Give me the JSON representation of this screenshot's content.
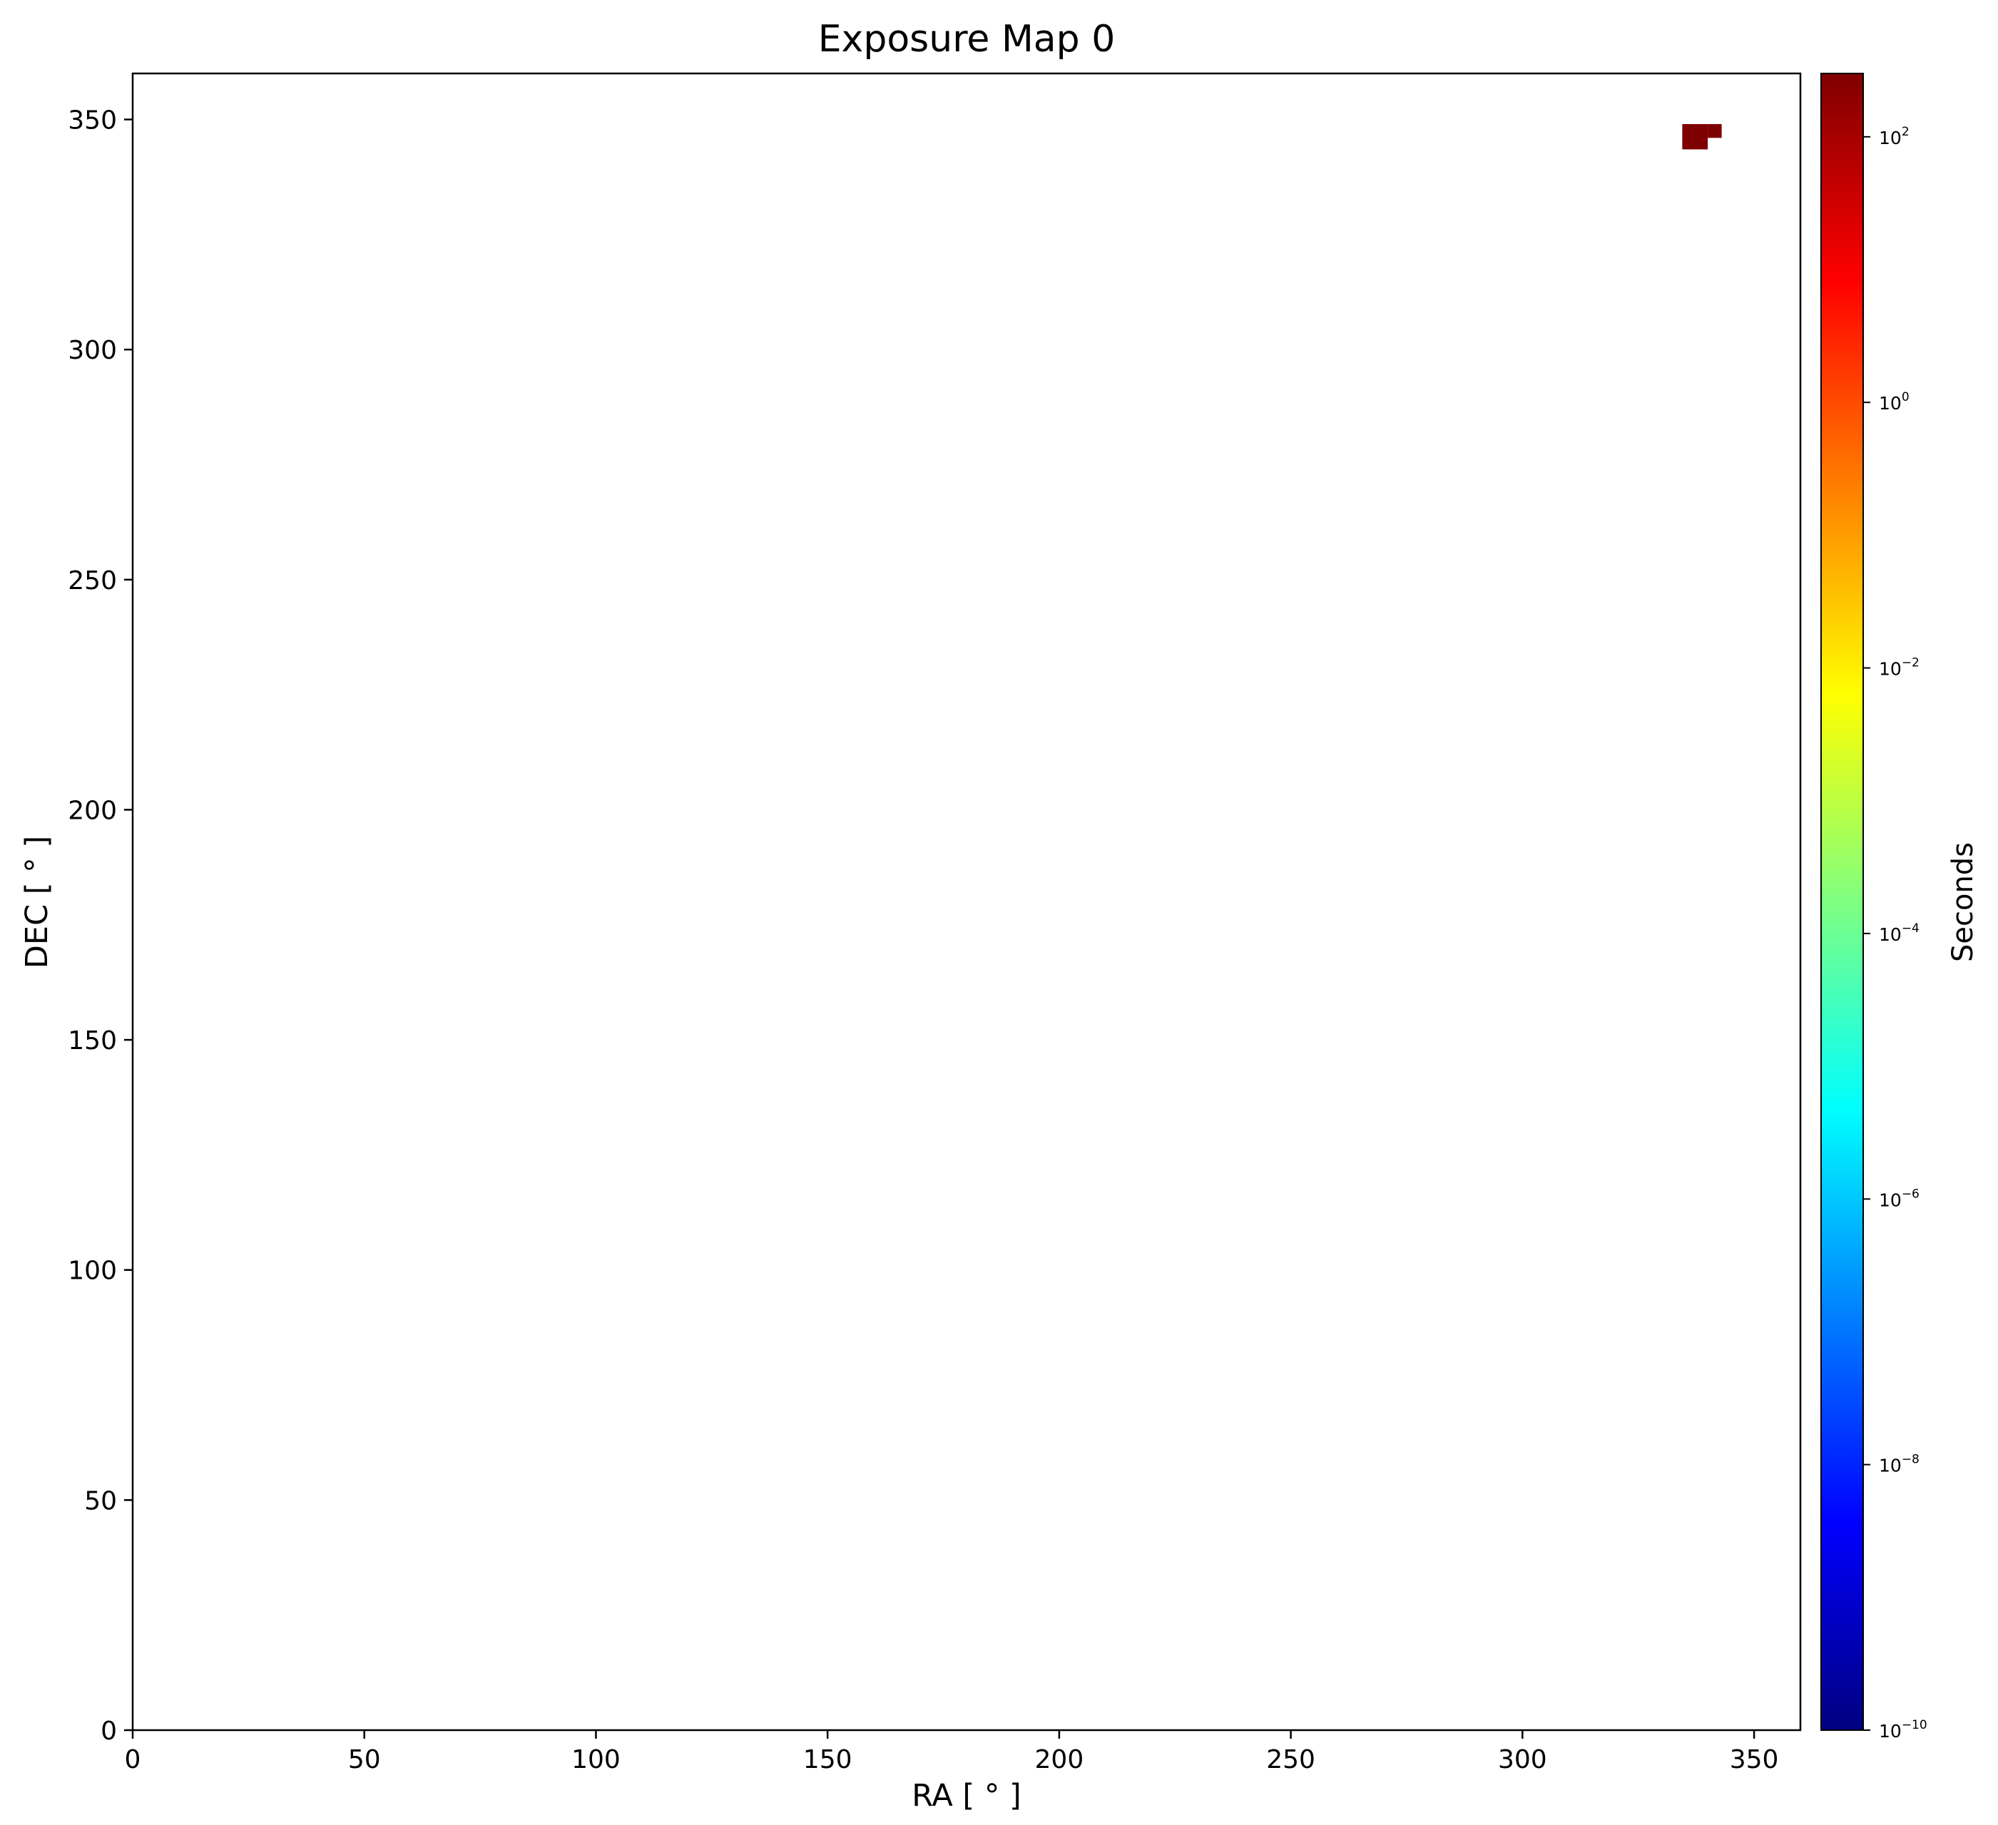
{
  "chart_data": {
    "type": "heatmap",
    "title": "Exposure Map 0",
    "xlabel": "RA [ ° ]",
    "ylabel": "DEC [ ° ]",
    "xlim": [
      0,
      360
    ],
    "ylim": [
      0,
      360
    ],
    "xticks": [
      0,
      50,
      100,
      150,
      200,
      250,
      300,
      350
    ],
    "yticks": [
      0,
      50,
      100,
      150,
      200,
      250,
      300,
      350
    ],
    "grid": false,
    "colormap": "jet",
    "colorbar": {
      "label": "Seconds",
      "scale": "log",
      "range": [
        1e-10,
        300
      ],
      "ticks": [
        {
          "base": "10",
          "exp": "−10",
          "value": 1e-10
        },
        {
          "base": "10",
          "exp": "−8",
          "value": 1e-08
        },
        {
          "base": "10",
          "exp": "−6",
          "value": 1e-06
        },
        {
          "base": "10",
          "exp": "−4",
          "value": 0.0001
        },
        {
          "base": "10",
          "exp": "−2",
          "value": 0.01
        },
        {
          "base": "10",
          "exp": "0",
          "value": 1
        },
        {
          "base": "10",
          "exp": "2",
          "value": 100
        }
      ],
      "colors": [
        "#00007f",
        "#0000ff",
        "#007fff",
        "#00ffff",
        "#7fff7f",
        "#ffff00",
        "#ff7f00",
        "#ff0000",
        "#7f0000"
      ]
    },
    "cells": [
      {
        "x0": 334.5,
        "x1": 340,
        "y0": 343.5,
        "y1": 349,
        "value": 300
      },
      {
        "x0": 340,
        "x1": 343,
        "y0": 346,
        "y1": 349,
        "value": 300
      }
    ],
    "cell_color": "#7f0000"
  }
}
